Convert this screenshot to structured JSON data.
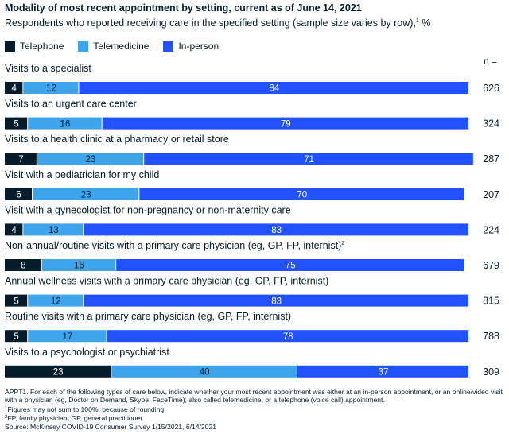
{
  "title": "Modality of most recent appointment by setting, current as of June 14, 2021",
  "subtitle": "Respondents who reported receiving care in the specified setting (sample size varies by row),",
  "subtitle_sup": "1",
  "subtitle_unit": " %",
  "n_header": "n =",
  "colors": {
    "Telephone": "#051c2c",
    "Telemedicine": "#3ea4ec",
    "In-person": "#2251ff"
  },
  "chart_data": {
    "type": "bar",
    "orientation": "horizontal",
    "stacked": true,
    "xlim": [
      0,
      100
    ],
    "categories": [
      "Visits to a specialist",
      "Visits to an urgent care center",
      "Visits to a health clinic at a pharmacy or retail store",
      "Visit with a pediatrician for my child",
      "Visit with a gynecologist for non-pregnancy or non-maternity care",
      "Non-annual/routine visits with a primary care physician (eg, GP, FP, internist)",
      "Annual wellness visits with a primary care physician (eg, GP, FP, internist)",
      "Routine visits with a primary care physician (eg, GP, FP, internist)",
      "Visits to a psychologist or psychiatrist"
    ],
    "category_superscripts": [
      "",
      "",
      "",
      "",
      "",
      "2",
      "",
      "",
      ""
    ],
    "series": [
      {
        "name": "Telephone",
        "values": [
          4,
          5,
          7,
          6,
          4,
          8,
          5,
          5,
          23
        ]
      },
      {
        "name": "Telemedicine",
        "values": [
          12,
          16,
          23,
          23,
          13,
          16,
          12,
          17,
          40
        ]
      },
      {
        "name": "In-person",
        "values": [
          84,
          79,
          71,
          70,
          83,
          75,
          83,
          78,
          37
        ]
      }
    ],
    "n": [
      626,
      324,
      287,
      207,
      224,
      679,
      815,
      788,
      309
    ],
    "legend_position": "top-left"
  },
  "footnotes": {
    "question": "APPT1. For each of the following types of care below, indicate whether your most recent appointment was either at an in-person appointment, or an online/video visit with a physician (eg, Doctor on Demand, Skype, FaceTime); also called telemedicine, or a telephone (voice call) appointment.",
    "note1_mark": "1",
    "note1": "Figures may not sum to 100%, because of rounding.",
    "note2_mark": "2",
    "note2": "FP, family physician; GP, general practitioner.",
    "source": "Source: McKinsey COVID-19 Consumer Survey 1/15/2021, 6/14/2021"
  }
}
